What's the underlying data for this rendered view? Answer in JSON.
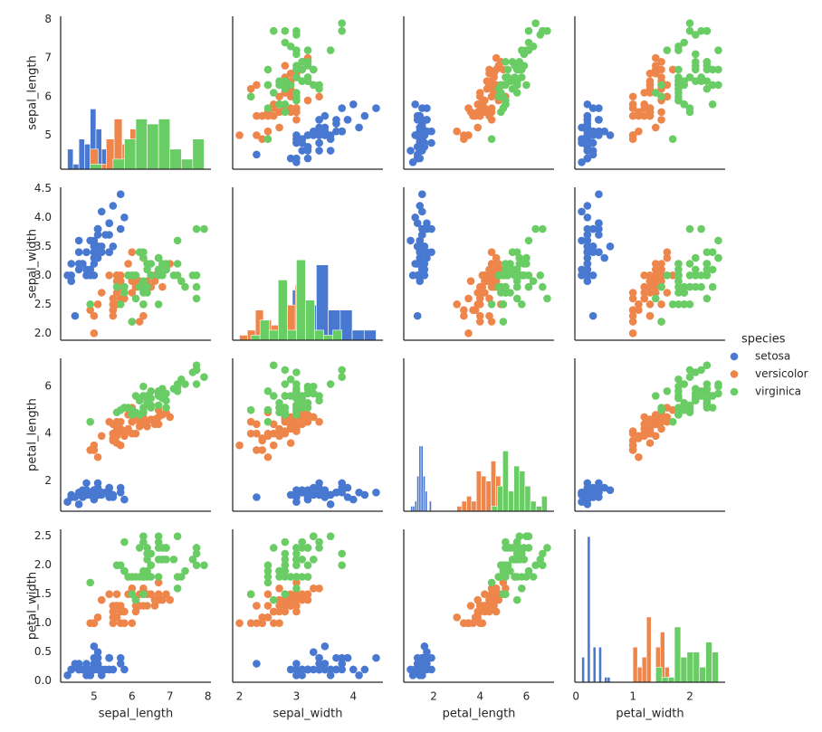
{
  "chart_data": {
    "type": "pairplot",
    "legend_title": "species",
    "diag_ylim": [
      0,
      30.45
    ],
    "variables": [
      {
        "name": "sepal_length",
        "lim": [
          4.12,
          8.08
        ],
        "xticks": [
          5,
          6,
          7,
          8
        ],
        "yticks": [
          5,
          6,
          7,
          8
        ]
      },
      {
        "name": "sepal_width",
        "lim": [
          1.88,
          4.52
        ],
        "xticks": [
          2,
          3,
          4
        ],
        "yticks": [
          {
            "value": 2,
            "label": "2.0"
          },
          2.5,
          {
            "value": 3,
            "label": "3.0"
          },
          3.5,
          {
            "value": 4,
            "label": "4.0"
          },
          4.5
        ]
      },
      {
        "name": "petal_length",
        "lim": [
          0.705,
          7.195
        ],
        "xticks": [
          2,
          4,
          6
        ],
        "yticks": [
          2,
          4,
          6
        ]
      },
      {
        "name": "petal_width",
        "lim": [
          -0.02,
          2.62
        ],
        "xticks": [
          0,
          1,
          2
        ],
        "yticks": [
          {
            "value": 0,
            "label": "0.0"
          },
          0.5,
          {
            "value": 1,
            "label": "1.0"
          },
          1.5,
          {
            "value": 2,
            "label": "2.0"
          },
          2.5
        ]
      }
    ],
    "series": [
      {
        "name": "setosa",
        "color": "#4878d0",
        "values": {
          "sepal_length": [
            5.1,
            4.9,
            4.7,
            4.6,
            5.0,
            5.4,
            4.6,
            5.0,
            4.4,
            4.9,
            5.4,
            4.8,
            4.8,
            4.3,
            5.8,
            5.7,
            5.4,
            5.1,
            5.7,
            5.1,
            5.4,
            5.1,
            4.6,
            5.1,
            4.8,
            5.0,
            5.0,
            5.2,
            5.2,
            4.7,
            4.8,
            5.4,
            5.2,
            5.5,
            4.9,
            5.0,
            5.5,
            4.9,
            4.4,
            5.1,
            5.0,
            4.5,
            4.4,
            5.0,
            5.1,
            4.8,
            5.1,
            4.6,
            5.3,
            5.0
          ],
          "sepal_width": [
            3.5,
            3.0,
            3.2,
            3.1,
            3.6,
            3.9,
            3.4,
            3.4,
            2.9,
            3.1,
            3.7,
            3.4,
            3.0,
            3.0,
            4.0,
            4.4,
            3.9,
            3.5,
            3.8,
            3.8,
            3.4,
            3.7,
            3.6,
            3.3,
            3.4,
            3.0,
            3.4,
            3.5,
            3.4,
            3.2,
            3.1,
            3.4,
            4.1,
            4.2,
            3.1,
            3.2,
            3.5,
            3.6,
            3.0,
            3.4,
            3.5,
            2.3,
            3.2,
            3.5,
            3.8,
            3.0,
            3.8,
            3.2,
            3.7,
            3.3
          ],
          "petal_length": [
            1.4,
            1.4,
            1.3,
            1.5,
            1.4,
            1.7,
            1.4,
            1.5,
            1.4,
            1.5,
            1.5,
            1.6,
            1.4,
            1.1,
            1.2,
            1.5,
            1.3,
            1.4,
            1.7,
            1.5,
            1.7,
            1.5,
            1.0,
            1.7,
            1.9,
            1.6,
            1.6,
            1.5,
            1.4,
            1.6,
            1.6,
            1.5,
            1.5,
            1.4,
            1.5,
            1.2,
            1.3,
            1.4,
            1.3,
            1.5,
            1.3,
            1.3,
            1.3,
            1.6,
            1.9,
            1.4,
            1.6,
            1.4,
            1.5,
            1.4
          ],
          "petal_width": [
            0.2,
            0.2,
            0.2,
            0.2,
            0.2,
            0.4,
            0.3,
            0.2,
            0.2,
            0.1,
            0.2,
            0.2,
            0.1,
            0.1,
            0.2,
            0.4,
            0.4,
            0.3,
            0.3,
            0.3,
            0.2,
            0.4,
            0.2,
            0.5,
            0.2,
            0.2,
            0.4,
            0.2,
            0.2,
            0.2,
            0.2,
            0.4,
            0.1,
            0.2,
            0.2,
            0.2,
            0.2,
            0.1,
            0.2,
            0.2,
            0.3,
            0.3,
            0.2,
            0.6,
            0.4,
            0.3,
            0.2,
            0.2,
            0.2,
            0.2
          ]
        },
        "hist": {
          "sepal_length": {
            "bins": [
              4.3,
              4.45,
              4.6,
              4.75,
              4.9,
              5.05,
              5.2,
              5.35,
              5.5,
              5.65,
              5.8
            ],
            "counts": [
              4,
              1,
              6,
              5,
              12,
              8,
              4,
              5,
              2,
              3
            ]
          },
          "sepal_width": {
            "bins": [
              2.3,
              2.51,
              2.72,
              2.93,
              3.14,
              3.35,
              3.56,
              3.77,
              3.98,
              4.19,
              4.4
            ],
            "counts": [
              1,
              0,
              1,
              10,
              7,
              15,
              6,
              6,
              2,
              2
            ]
          },
          "petal_length": {
            "bins": [
              1.0,
              1.09,
              1.18,
              1.27,
              1.36,
              1.45,
              1.54,
              1.63,
              1.72,
              1.81,
              1.9
            ],
            "counts": [
              1,
              1,
              2,
              7,
              13,
              13,
              7,
              4,
              0,
              2
            ]
          },
          "petal_width": {
            "bins": [
              0.1,
              0.15,
              0.2,
              0.25,
              0.3,
              0.35,
              0.4,
              0.45,
              0.5,
              0.55,
              0.6
            ],
            "counts": [
              5,
              0,
              29,
              0,
              7,
              0,
              7,
              0,
              1,
              1
            ]
          }
        }
      },
      {
        "name": "versicolor",
        "color": "#ee854a",
        "values": {
          "sepal_length": [
            7.0,
            6.4,
            6.9,
            5.5,
            6.5,
            5.7,
            6.3,
            4.9,
            6.6,
            5.2,
            5.0,
            5.9,
            6.0,
            6.1,
            5.6,
            6.7,
            5.6,
            5.8,
            6.2,
            5.6,
            5.9,
            6.1,
            6.3,
            6.1,
            6.4,
            6.6,
            6.8,
            6.7,
            6.0,
            5.7,
            5.5,
            5.5,
            5.8,
            6.0,
            5.4,
            6.0,
            6.7,
            6.3,
            5.6,
            5.5,
            5.5,
            6.1,
            5.8,
            5.0,
            5.6,
            5.7,
            5.7,
            6.2,
            5.1,
            5.7
          ],
          "sepal_width": [
            3.2,
            3.2,
            3.1,
            2.3,
            2.8,
            2.8,
            3.3,
            2.4,
            2.9,
            2.7,
            2.0,
            3.0,
            2.2,
            2.9,
            2.9,
            3.1,
            3.0,
            2.7,
            2.2,
            2.5,
            3.2,
            2.8,
            2.5,
            2.8,
            2.9,
            3.0,
            2.8,
            3.0,
            2.9,
            2.6,
            2.4,
            2.4,
            2.7,
            2.7,
            3.0,
            3.4,
            3.1,
            2.3,
            3.0,
            2.5,
            2.6,
            3.0,
            2.6,
            2.3,
            2.7,
            3.0,
            2.9,
            2.9,
            2.5,
            2.8
          ],
          "petal_length": [
            4.7,
            4.5,
            4.9,
            4.0,
            4.6,
            4.5,
            4.7,
            3.3,
            4.6,
            3.9,
            3.5,
            4.2,
            4.0,
            4.7,
            3.6,
            4.4,
            4.5,
            4.1,
            4.5,
            3.9,
            4.8,
            4.0,
            4.9,
            4.7,
            4.3,
            4.4,
            4.8,
            5.0,
            4.5,
            3.5,
            3.8,
            3.7,
            3.9,
            5.1,
            4.5,
            4.5,
            4.7,
            4.4,
            4.1,
            4.0,
            4.4,
            4.6,
            4.0,
            3.3,
            4.2,
            4.2,
            4.2,
            4.3,
            3.0,
            4.1
          ],
          "petal_width": [
            1.4,
            1.5,
            1.5,
            1.3,
            1.5,
            1.3,
            1.6,
            1.0,
            1.3,
            1.4,
            1.0,
            1.5,
            1.0,
            1.4,
            1.3,
            1.4,
            1.5,
            1.0,
            1.5,
            1.1,
            1.8,
            1.3,
            1.5,
            1.2,
            1.3,
            1.4,
            1.4,
            1.7,
            1.5,
            1.0,
            1.1,
            1.0,
            1.2,
            1.6,
            1.5,
            1.6,
            1.5,
            1.3,
            1.3,
            1.3,
            1.2,
            1.4,
            1.2,
            1.0,
            1.3,
            1.2,
            1.3,
            1.3,
            1.1,
            1.3
          ]
        },
        "hist": {
          "sepal_length": {
            "bins": [
              4.9,
              5.11,
              5.32,
              5.53,
              5.74,
              5.95,
              6.16,
              6.37,
              6.58,
              6.79,
              7.0
            ],
            "counts": [
              4,
              1,
              6,
              10,
              5,
              8,
              5,
              3,
              5,
              3
            ]
          },
          "sepal_width": {
            "bins": [
              2.0,
              2.14,
              2.28,
              2.42,
              2.56,
              2.7,
              2.84,
              2.98,
              3.12,
              3.26,
              3.4
            ],
            "counts": [
              1,
              2,
              6,
              4,
              3,
              11,
              7,
              11,
              3,
              2
            ]
          },
          "petal_length": {
            "bins": [
              3.0,
              3.21,
              3.42,
              3.63,
              3.84,
              4.05,
              4.26,
              4.47,
              4.68,
              4.89,
              5.1
            ],
            "counts": [
              1,
              2,
              3,
              2,
              8,
              7,
              6,
              10,
              7,
              4
            ]
          },
          "petal_width": {
            "bins": [
              1.0,
              1.08,
              1.16,
              1.24,
              1.32,
              1.4,
              1.48,
              1.56,
              1.64,
              1.72,
              1.8
            ],
            "counts": [
              7,
              3,
              5,
              13,
              0,
              7,
              10,
              3,
              1,
              1
            ]
          }
        }
      },
      {
        "name": "virginica",
        "color": "#6acc64",
        "values": {
          "sepal_length": [
            6.3,
            5.8,
            7.1,
            6.3,
            6.5,
            7.6,
            4.9,
            7.3,
            6.7,
            7.2,
            6.5,
            6.4,
            6.8,
            5.7,
            5.8,
            6.4,
            6.5,
            7.7,
            7.7,
            6.0,
            6.9,
            5.6,
            7.7,
            6.3,
            6.7,
            7.2,
            6.2,
            6.1,
            6.4,
            7.2,
            7.4,
            7.9,
            6.4,
            6.3,
            6.1,
            7.7,
            6.3,
            6.4,
            6.0,
            6.9,
            6.7,
            6.9,
            5.8,
            6.8,
            6.7,
            6.7,
            6.3,
            6.5,
            6.2,
            5.9
          ],
          "sepal_width": [
            3.3,
            2.7,
            3.0,
            2.9,
            3.0,
            3.0,
            2.5,
            2.9,
            2.5,
            3.6,
            3.2,
            2.7,
            3.0,
            2.5,
            2.8,
            3.2,
            3.0,
            3.8,
            2.6,
            2.2,
            3.2,
            2.8,
            2.8,
            2.7,
            3.3,
            3.2,
            2.8,
            3.0,
            2.8,
            3.0,
            2.8,
            3.8,
            2.8,
            2.8,
            2.6,
            3.0,
            3.4,
            3.1,
            3.0,
            3.1,
            3.1,
            3.1,
            2.7,
            3.2,
            3.3,
            3.0,
            2.5,
            3.0,
            3.4,
            3.0
          ],
          "petal_length": [
            6.0,
            5.1,
            5.9,
            5.6,
            5.8,
            6.6,
            4.5,
            6.3,
            5.8,
            6.1,
            5.1,
            5.3,
            5.5,
            5.0,
            5.1,
            5.3,
            5.5,
            6.7,
            6.9,
            5.0,
            5.7,
            4.9,
            6.7,
            4.9,
            5.7,
            6.0,
            4.8,
            4.9,
            5.6,
            5.8,
            6.1,
            6.4,
            5.6,
            5.1,
            5.6,
            6.1,
            5.6,
            5.5,
            4.8,
            5.4,
            5.6,
            5.1,
            5.1,
            5.9,
            5.7,
            5.2,
            5.0,
            5.2,
            5.4,
            5.1
          ],
          "petal_width": [
            2.5,
            1.9,
            2.1,
            1.8,
            2.2,
            2.1,
            1.7,
            1.8,
            1.8,
            2.5,
            2.0,
            1.9,
            2.1,
            2.0,
            2.4,
            2.3,
            1.8,
            2.2,
            2.3,
            1.5,
            2.3,
            2.0,
            2.0,
            1.8,
            2.1,
            1.8,
            1.8,
            1.8,
            2.1,
            1.6,
            1.9,
            2.0,
            2.2,
            1.5,
            1.4,
            2.3,
            2.4,
            1.8,
            1.8,
            2.1,
            2.4,
            2.3,
            1.9,
            2.3,
            2.5,
            2.3,
            1.9,
            2.0,
            2.3,
            1.8
          ]
        },
        "hist": {
          "sepal_length": {
            "bins": [
              4.9,
              5.2,
              5.5,
              5.8,
              6.1,
              6.4,
              6.7,
              7.0,
              7.3,
              7.6,
              7.9
            ],
            "counts": [
              1,
              0,
              2,
              6,
              10,
              9,
              10,
              4,
              2,
              6
            ]
          },
          "sepal_width": {
            "bins": [
              2.2,
              2.36,
              2.52,
              2.68,
              2.84,
              3.0,
              3.16,
              3.32,
              3.48,
              3.64,
              3.8
            ],
            "counts": [
              1,
              4,
              2,
              12,
              2,
              16,
              8,
              2,
              1,
              2
            ]
          },
          "petal_length": {
            "bins": [
              4.5,
              4.74,
              4.98,
              5.22,
              5.46,
              5.7,
              5.94,
              6.18,
              6.42,
              6.66,
              6.9
            ],
            "counts": [
              1,
              5,
              12,
              4,
              9,
              8,
              5,
              2,
              1,
              3
            ]
          },
          "petal_width": {
            "bins": [
              1.4,
              1.51,
              1.62,
              1.73,
              1.84,
              1.95,
              2.06,
              2.17,
              2.28,
              2.39,
              2.5
            ],
            "counts": [
              3,
              1,
              1,
              11,
              5,
              6,
              6,
              3,
              8,
              6
            ]
          }
        }
      }
    ]
  }
}
